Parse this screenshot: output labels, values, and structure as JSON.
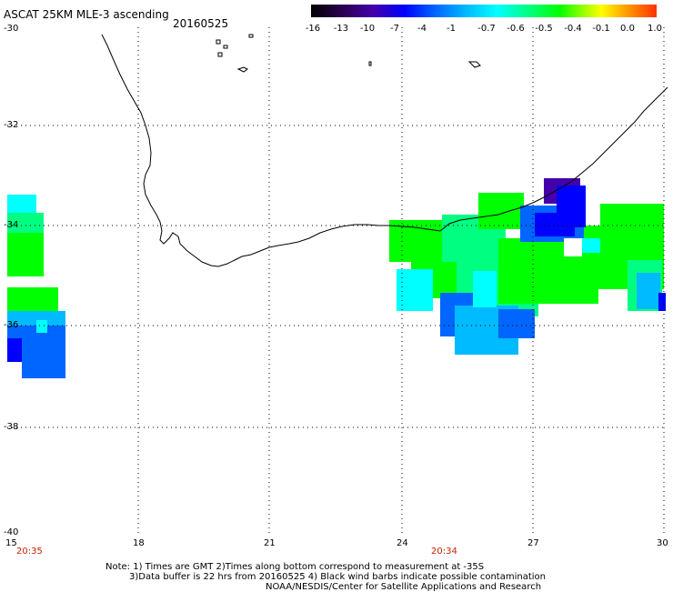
{
  "title": "ASCAT 25KM MLE-3 ascending",
  "date": "20160525",
  "colorbar": {
    "labels": [
      "-16",
      "-13",
      "-10",
      "-7",
      "-4",
      "-1",
      "-0.7",
      "-0.6",
      "-0.5",
      "-0.4",
      "-0.1",
      "0.0",
      "1.0"
    ],
    "colors": [
      "#000000",
      "#4400aa",
      "#0000ff",
      "#0066ff",
      "#00bbff",
      "#00ffff",
      "#00ff80",
      "#00ff00",
      "#ffff00",
      "#ff3000"
    ]
  },
  "map": {
    "lat_labels": [
      "-30",
      "-32",
      "-34",
      "-36",
      "-38",
      "-40"
    ],
    "lon_labels": [
      "15",
      "18",
      "21",
      "24",
      "27",
      "30"
    ],
    "lat_range": [
      -40,
      -30
    ],
    "lon_range": [
      15,
      30
    ],
    "grid": true,
    "times": [
      "20:35",
      "20:34"
    ],
    "colors": {
      "land_outline": "#000000",
      "grid": "#000000",
      "time_label": "#cc2200"
    }
  },
  "note": {
    "line1": "Note: 1) Times are GMT 2)Times along bottom correspond to measurement at -35S",
    "line2": "3)Data buffer is 22 hrs from 20160525 4) Black wind barbs indicate possible contamination",
    "line3": "NOAA/NESDIS/Center for Satellite Applications and Research"
  }
}
